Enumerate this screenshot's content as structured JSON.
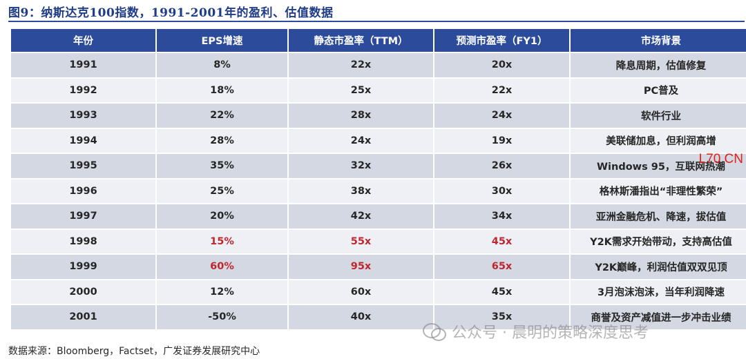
{
  "figure": {
    "title": "图9：纳斯达克100指数，1991-2001年的盈利、估值数据"
  },
  "table": {
    "headers": [
      "年份",
      "EPS增速",
      "静态市盈率（TTM）",
      "预测市盈率（FY1）",
      "市场背景"
    ],
    "rows": [
      {
        "year": "1991",
        "eps": "8%",
        "ttm": "22x",
        "fy1": "20x",
        "bg": "降息周期，估值修复"
      },
      {
        "year": "1992",
        "eps": "18%",
        "ttm": "25x",
        "fy1": "22x",
        "bg": "PC普及"
      },
      {
        "year": "1993",
        "eps": "22%",
        "ttm": "28x",
        "fy1": "24x",
        "bg": "软件行业"
      },
      {
        "year": "1994",
        "eps": "28%",
        "ttm": "24x",
        "fy1": "19x",
        "bg": "美联储加息，但利润高增"
      },
      {
        "year": "1995",
        "eps": "35%",
        "ttm": "32x",
        "fy1": "26x",
        "bg": "Windows 95，互联网热潮"
      },
      {
        "year": "1996",
        "eps": "25%",
        "ttm": "38x",
        "fy1": "30x",
        "bg": "格林斯潘指出“非理性繁荣”"
      },
      {
        "year": "1997",
        "eps": "20%",
        "ttm": "42x",
        "fy1": "34x",
        "bg": "亚洲金融危机、降速，拔估值"
      },
      {
        "year": "1998",
        "eps": "15%",
        "ttm": "55x",
        "fy1": "45x",
        "bg": "Y2K需求开始带动，支持高估值"
      },
      {
        "year": "1999",
        "eps": "60%",
        "ttm": "95x",
        "fy1": "65x",
        "bg": "Y2K巅峰，利润估值双双见顶"
      },
      {
        "year": "2000",
        "eps": "12%",
        "ttm": "60x",
        "fy1": "45x",
        "bg": "3月泡沫泡沫，当年利润降速"
      },
      {
        "year": "2001",
        "eps": "-50%",
        "ttm": "40x",
        "fy1": "35x",
        "bg": "商誉及资产减值进一步冲击业绩"
      }
    ],
    "highlight_rows": [
      "1998",
      "1999"
    ],
    "highlight_color": "#c0262d",
    "header_color": "#2c4b9b"
  },
  "overlay_text": "L70 CN",
  "watermark": {
    "icon": "wechat-icon",
    "text": "公众号 · 晨明的策略深度思考"
  },
  "source": {
    "label": "数据来源：",
    "text": "Bloomberg，Factset，广发证券发展研究中心"
  }
}
